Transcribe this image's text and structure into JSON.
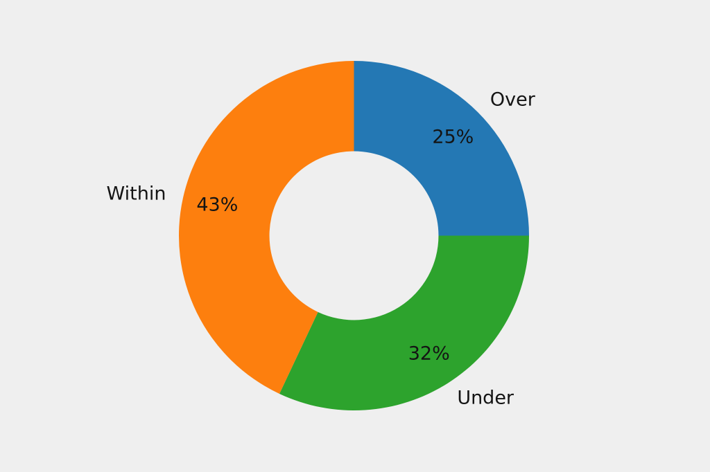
{
  "background_color": "#efefef",
  "text_color": "#141414",
  "chart_data": {
    "type": "pie",
    "donut": true,
    "title": "",
    "legend": "none",
    "labels_position": "outside",
    "start_angle_deg": 90,
    "clockwise": true,
    "hole_ratio": 0.483,
    "pct_distance": 0.8,
    "label_distance": 1.1,
    "segments": [
      {
        "label": "Over",
        "value": 25,
        "pct_text": "25%",
        "color": "#2478b4"
      },
      {
        "label": "Under",
        "value": 32,
        "pct_text": "32%",
        "color": "#2da32d"
      },
      {
        "label": "Within",
        "value": 43,
        "pct_text": "43%",
        "color": "#fd7f0e"
      }
    ]
  }
}
